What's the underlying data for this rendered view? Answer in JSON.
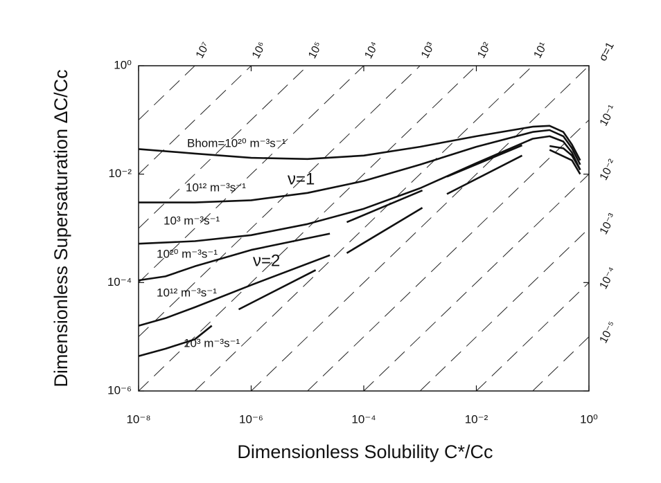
{
  "chart_data": {
    "type": "line",
    "x_label": "Dimensionless Solubility C*/Cc",
    "y_label": "Dimensionless Supersaturation ΔC/Cc",
    "xscale": "log",
    "yscale": "log",
    "xlim": [
      1e-08,
      1
    ],
    "ylim": [
      1e-06,
      1
    ],
    "xticks": [
      {
        "value": 1e-08,
        "label": "10⁻⁸"
      },
      {
        "value": 1e-06,
        "label": "10⁻⁶"
      },
      {
        "value": 0.0001,
        "label": "10⁻⁴"
      },
      {
        "value": 0.01,
        "label": "10⁻²"
      },
      {
        "value": 1,
        "label": "10⁰"
      }
    ],
    "yticks": [
      {
        "value": 1e-06,
        "label": "10⁻⁶"
      },
      {
        "value": 0.0001,
        "label": "10⁻⁴"
      },
      {
        "value": 0.01,
        "label": "10⁻²"
      },
      {
        "value": 1,
        "label": "10⁰"
      }
    ],
    "sigma_lines": [
      {
        "value": 10000000.0,
        "label": "10⁷"
      },
      {
        "value": 1000000.0,
        "label": "10⁶"
      },
      {
        "value": 100000.0,
        "label": "10⁵"
      },
      {
        "value": 10000.0,
        "label": "10⁴"
      },
      {
        "value": 1000.0,
        "label": "10³"
      },
      {
        "value": 100.0,
        "label": "10²"
      },
      {
        "value": 10.0,
        "label": "10¹"
      },
      {
        "value": 1,
        "label": "σ=1"
      },
      {
        "value": 0.1,
        "label": "10⁻¹"
      },
      {
        "value": 0.01,
        "label": "10⁻²"
      },
      {
        "value": 0.001,
        "label": "10⁻³"
      },
      {
        "value": 0.0001,
        "label": "10⁻⁴"
      },
      {
        "value": 1e-05,
        "label": "10⁻⁵"
      }
    ],
    "color": "#111111",
    "series": [
      {
        "x": [
          1e-08,
          1e-07,
          1e-06,
          1e-05,
          0.0001,
          0.001,
          0.01,
          0.1,
          0.2,
          0.35,
          0.5,
          0.7
        ],
        "values": [
          0.029,
          0.024,
          0.02,
          0.019,
          0.022,
          0.032,
          0.05,
          0.075,
          0.078,
          0.06,
          0.035,
          0.018
        ]
      },
      {
        "x": [
          1e-08,
          1e-07,
          1e-06,
          1e-05,
          0.0001,
          0.001,
          0.01,
          0.1,
          0.2,
          0.35,
          0.5,
          0.7
        ],
        "values": [
          0.003,
          0.003,
          0.0033,
          0.0045,
          0.0075,
          0.015,
          0.032,
          0.06,
          0.065,
          0.05,
          0.03,
          0.015
        ]
      },
      {
        "x": [
          1e-08,
          1e-07,
          1e-06,
          1e-05,
          0.0001,
          0.001,
          0.01,
          0.1,
          0.2,
          0.35,
          0.5,
          0.7
        ],
        "values": [
          0.00052,
          0.00058,
          0.00075,
          0.0012,
          0.0023,
          0.0055,
          0.016,
          0.045,
          0.05,
          0.04,
          0.025,
          0.012
        ]
      },
      {
        "x": [
          1e-08,
          3e-08,
          1e-07,
          1e-06,
          2.5e-05,
          null,
          5e-05,
          0.0011,
          null,
          0.003,
          0.065,
          null,
          0.2,
          0.35,
          0.5,
          0.7
        ],
        "values": [
          0.00011,
          0.00013,
          0.0002,
          0.0004,
          0.0008,
          null,
          0.0013,
          0.005,
          null,
          0.009,
          0.034,
          null,
          0.033,
          0.03,
          0.022,
          0.012
        ]
      },
      {
        "x": [
          1e-08,
          3e-08,
          1e-07,
          1e-06,
          2.5e-05,
          null,
          5e-05,
          0.0011,
          null,
          0.003,
          0.065,
          null,
          0.2,
          0.5,
          0.7
        ],
        "values": [
          1.6e-05,
          2.2e-05,
          3.5e-05,
          9e-05,
          0.00032,
          null,
          0.00035,
          0.0024,
          null,
          0.0043,
          0.022,
          null,
          0.028,
          0.018,
          0.01
        ]
      },
      {
        "x": [
          1e-08,
          3e-08,
          1e-07,
          2e-07,
          null,
          6e-07,
          1.4e-05
        ],
        "values": [
          4.4e-06,
          6e-06,
          9e-06,
          1.6e-05,
          null,
          3.2e-05,
          0.00017
        ]
      }
    ],
    "annotations": [
      "Bhom=10²⁰ m⁻³s⁻¹",
      "10¹² m⁻³s⁻¹",
      "ν=1",
      "10³ m⁻³s⁻¹",
      "10²⁰ m⁻³s⁻¹",
      "ν=2",
      "10¹² m⁻³s⁻¹",
      "10³ m⁻³s⁻¹"
    ]
  }
}
